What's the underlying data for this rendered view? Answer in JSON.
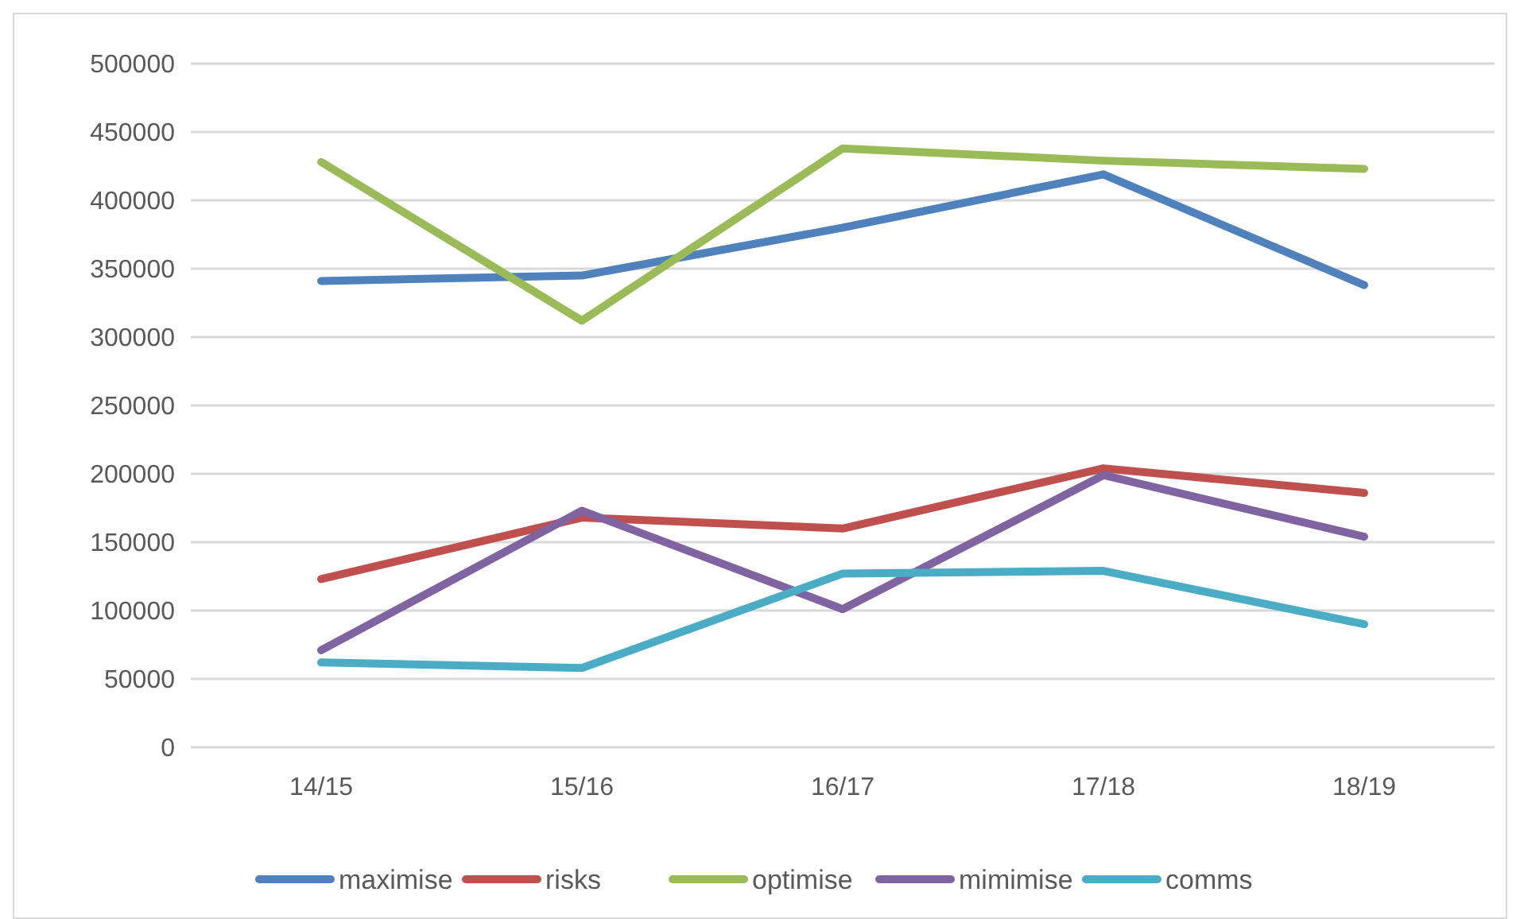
{
  "chart_data": {
    "type": "line",
    "categories": [
      "14/15",
      "15/16",
      "16/17",
      "17/18",
      "18/19"
    ],
    "series": [
      {
        "name": "maximise",
        "color": "#4f81bd",
        "values": [
          341000,
          345000,
          380000,
          419000,
          338000
        ]
      },
      {
        "name": "risks",
        "color": "#c0504d",
        "values": [
          123000,
          168000,
          160000,
          204000,
          186000
        ]
      },
      {
        "name": "optimise",
        "color": "#9bbb59",
        "values": [
          428000,
          312000,
          438000,
          429000,
          423000
        ]
      },
      {
        "name": "mimimise",
        "color": "#8064a2",
        "values": [
          71000,
          173000,
          101000,
          199000,
          154000
        ]
      },
      {
        "name": "comms",
        "color": "#4bacc6",
        "values": [
          62000,
          58000,
          127000,
          129000,
          90000
        ]
      }
    ],
    "ylim": [
      0,
      500000
    ],
    "yticks": [
      0,
      50000,
      100000,
      150000,
      200000,
      250000,
      300000,
      350000,
      400000,
      450000,
      500000
    ],
    "grid": "y",
    "legend": "bottom",
    "marker": "none",
    "line_style": "solid"
  }
}
